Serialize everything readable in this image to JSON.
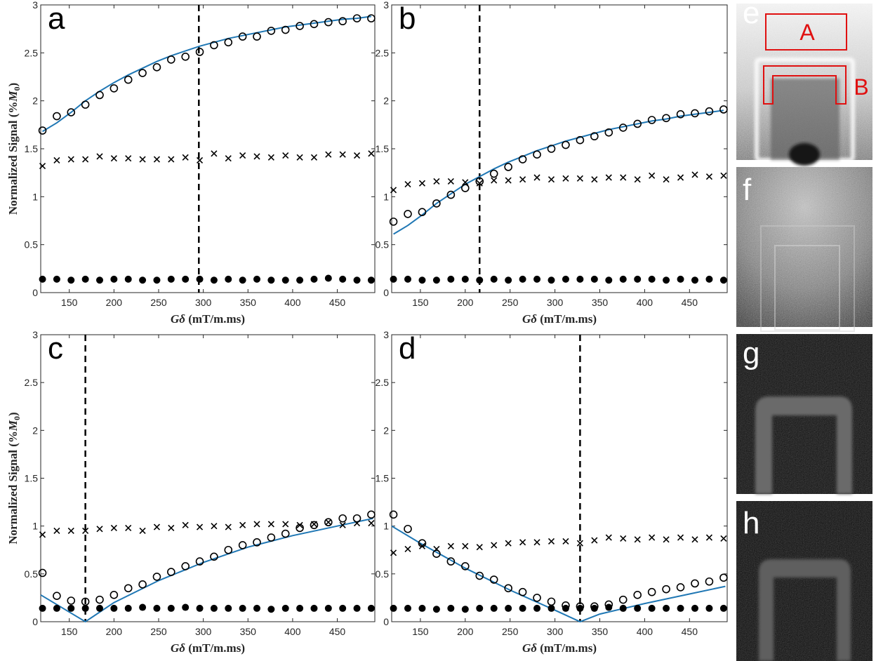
{
  "colors": {
    "model": "#1f77b4",
    "roi": "#e01010",
    "marker": "#000000",
    "axis": "#262626"
  },
  "chart_data": [
    {
      "panel": "a",
      "type": "scatter",
      "xlabel_math": "Gδ",
      "xlabel_unit": "(mT/m.ms)",
      "ylabel_text": "Normalized Signal (%",
      "ylabel_sym": "M",
      "ylabel_sub": "0",
      "ylabel_close": ")",
      "xlim": [
        118,
        492
      ],
      "ylim": [
        0,
        3
      ],
      "xticks": [
        150,
        200,
        250,
        300,
        350,
        400,
        450
      ],
      "yticks": [
        0,
        0.5,
        1,
        1.5,
        2,
        2.5,
        3
      ],
      "vline": 295,
      "x": [
        120,
        136,
        152,
        168,
        184,
        200,
        216,
        232,
        248,
        264,
        280,
        296,
        312,
        328,
        344,
        360,
        376,
        392,
        408,
        424,
        440,
        456,
        472,
        488
      ],
      "series": [
        {
          "marker": "open-circle",
          "values": [
            1.69,
            1.84,
            1.88,
            1.96,
            2.06,
            2.13,
            2.22,
            2.29,
            2.35,
            2.43,
            2.46,
            2.51,
            2.58,
            2.61,
            2.67,
            2.67,
            2.73,
            2.74,
            2.78,
            2.8,
            2.82,
            2.83,
            2.86,
            2.86
          ]
        },
        {
          "marker": "cross",
          "values": [
            1.32,
            1.38,
            1.39,
            1.39,
            1.42,
            1.4,
            1.4,
            1.39,
            1.39,
            1.39,
            1.41,
            1.38,
            1.45,
            1.4,
            1.43,
            1.42,
            1.41,
            1.43,
            1.41,
            1.41,
            1.44,
            1.44,
            1.43,
            1.45
          ]
        },
        {
          "marker": "filled-circle",
          "values": [
            0.14,
            0.14,
            0.13,
            0.14,
            0.13,
            0.14,
            0.14,
            0.13,
            0.13,
            0.14,
            0.14,
            0.14,
            0.13,
            0.14,
            0.13,
            0.14,
            0.13,
            0.13,
            0.13,
            0.14,
            0.15,
            0.14,
            0.13,
            0.13
          ]
        },
        {
          "marker": "line",
          "values": [
            1.68,
            1.77,
            1.88,
            2.0,
            2.1,
            2.19,
            2.27,
            2.34,
            2.41,
            2.47,
            2.52,
            2.57,
            2.61,
            2.65,
            2.68,
            2.71,
            2.74,
            2.77,
            2.79,
            2.81,
            2.83,
            2.85,
            2.86,
            2.88
          ]
        }
      ]
    },
    {
      "panel": "b",
      "type": "scatter",
      "xlabel_math": "Gδ",
      "xlabel_unit": "(mT/m.ms)",
      "xlim": [
        118,
        492
      ],
      "ylim": [
        0,
        3
      ],
      "xticks": [
        150,
        200,
        250,
        300,
        350,
        400,
        450
      ],
      "yticks": [
        0,
        0.5,
        1,
        1.5,
        2,
        2.5,
        3
      ],
      "vline": 216,
      "x": [
        120,
        136,
        152,
        168,
        184,
        200,
        216,
        232,
        248,
        264,
        280,
        296,
        312,
        328,
        344,
        360,
        376,
        392,
        408,
        424,
        440,
        456,
        472,
        488
      ],
      "series": [
        {
          "marker": "open-circle",
          "values": [
            0.74,
            0.82,
            0.84,
            0.93,
            1.02,
            1.09,
            1.16,
            1.24,
            1.31,
            1.39,
            1.44,
            1.5,
            1.54,
            1.59,
            1.63,
            1.67,
            1.72,
            1.76,
            1.8,
            1.82,
            1.86,
            1.87,
            1.89,
            1.91
          ]
        },
        {
          "marker": "cross",
          "values": [
            1.07,
            1.13,
            1.14,
            1.16,
            1.16,
            1.15,
            1.14,
            1.17,
            1.17,
            1.18,
            1.2,
            1.18,
            1.19,
            1.19,
            1.18,
            1.2,
            1.2,
            1.18,
            1.22,
            1.18,
            1.2,
            1.23,
            1.21,
            1.22
          ]
        },
        {
          "marker": "filled-circle",
          "values": [
            0.14,
            0.14,
            0.13,
            0.13,
            0.14,
            0.14,
            0.13,
            0.14,
            0.13,
            0.14,
            0.14,
            0.13,
            0.14,
            0.14,
            0.14,
            0.13,
            0.14,
            0.14,
            0.14,
            0.13,
            0.14,
            0.13,
            0.14,
            0.13
          ]
        },
        {
          "marker": "line",
          "values": [
            0.61,
            0.7,
            0.81,
            0.93,
            1.03,
            1.13,
            1.21,
            1.29,
            1.36,
            1.42,
            1.48,
            1.53,
            1.58,
            1.62,
            1.66,
            1.7,
            1.73,
            1.76,
            1.79,
            1.81,
            1.84,
            1.86,
            1.88,
            1.9
          ]
        }
      ]
    },
    {
      "panel": "c",
      "type": "scatter",
      "xlabel_math": "Gδ",
      "xlabel_unit": "(mT/m.ms)",
      "ylabel_text": "Normalized Signal (%",
      "ylabel_sym": "M",
      "ylabel_sub": "0",
      "ylabel_close": ")",
      "xlim": [
        118,
        492
      ],
      "ylim": [
        0,
        3
      ],
      "xticks": [
        150,
        200,
        250,
        300,
        350,
        400,
        450
      ],
      "yticks": [
        0,
        0.5,
        1,
        1.5,
        2,
        2.5,
        3
      ],
      "vline": 168,
      "x": [
        120,
        136,
        152,
        168,
        184,
        200,
        216,
        232,
        248,
        264,
        280,
        296,
        312,
        328,
        344,
        360,
        376,
        392,
        408,
        424,
        440,
        456,
        472,
        488
      ],
      "series": [
        {
          "marker": "open-circle",
          "values": [
            0.51,
            0.27,
            0.22,
            0.21,
            0.23,
            0.28,
            0.35,
            0.39,
            0.47,
            0.52,
            0.58,
            0.63,
            0.68,
            0.75,
            0.8,
            0.83,
            0.88,
            0.92,
            0.98,
            1.01,
            1.04,
            1.08,
            1.08,
            1.12
          ]
        },
        {
          "marker": "cross",
          "values": [
            0.91,
            0.95,
            0.95,
            0.95,
            0.97,
            0.98,
            0.98,
            0.95,
            0.99,
            0.98,
            1.01,
            0.99,
            1.0,
            0.99,
            1.01,
            1.02,
            1.02,
            1.02,
            1.01,
            1.02,
            1.04,
            1.01,
            1.03,
            1.03
          ]
        },
        {
          "marker": "filled-circle",
          "values": [
            0.14,
            0.14,
            0.14,
            0.14,
            0.14,
            0.14,
            0.14,
            0.15,
            0.14,
            0.14,
            0.15,
            0.14,
            0.14,
            0.14,
            0.14,
            0.14,
            0.13,
            0.14,
            0.14,
            0.14,
            0.14,
            0.14,
            0.14,
            0.14
          ]
        },
        {
          "marker": "line",
          "x": [
            118,
            168,
            200,
            250,
            300,
            350,
            400,
            450,
            490
          ],
          "values": [
            0.28,
            0.0,
            0.2,
            0.43,
            0.62,
            0.78,
            0.9,
            1.0,
            1.08
          ]
        }
      ]
    },
    {
      "panel": "d",
      "type": "scatter",
      "xlabel_math": "Gδ",
      "xlabel_unit": "(mT/m.ms)",
      "xlim": [
        118,
        492
      ],
      "ylim": [
        0,
        3
      ],
      "xticks": [
        150,
        200,
        250,
        300,
        350,
        400,
        450
      ],
      "yticks": [
        0,
        0.5,
        1,
        1.5,
        2,
        2.5,
        3
      ],
      "vline": 328,
      "x": [
        120,
        136,
        152,
        168,
        184,
        200,
        216,
        232,
        248,
        264,
        280,
        296,
        312,
        328,
        344,
        360,
        376,
        392,
        408,
        424,
        440,
        456,
        472,
        488
      ],
      "series": [
        {
          "marker": "open-circle",
          "values": [
            1.12,
            0.97,
            0.82,
            0.71,
            0.63,
            0.58,
            0.48,
            0.44,
            0.35,
            0.31,
            0.25,
            0.21,
            0.17,
            0.16,
            0.16,
            0.18,
            0.23,
            0.28,
            0.31,
            0.34,
            0.36,
            0.4,
            0.42,
            0.46
          ]
        },
        {
          "marker": "cross",
          "values": [
            0.72,
            0.76,
            0.79,
            0.76,
            0.79,
            0.79,
            0.78,
            0.8,
            0.82,
            0.83,
            0.83,
            0.84,
            0.84,
            0.82,
            0.85,
            0.88,
            0.87,
            0.86,
            0.88,
            0.86,
            0.88,
            0.86,
            0.88,
            0.87
          ]
        },
        {
          "marker": "filled-circle",
          "values": [
            0.14,
            0.14,
            0.14,
            0.13,
            0.14,
            0.13,
            0.14,
            0.14,
            0.14,
            0.14,
            0.14,
            0.14,
            0.14,
            0.14,
            0.14,
            0.15,
            0.14,
            0.14,
            0.14,
            0.14,
            0.14,
            0.14,
            0.14,
            0.14
          ]
        },
        {
          "marker": "line",
          "x": [
            118,
            150,
            200,
            250,
            300,
            328,
            350,
            400,
            450,
            490
          ],
          "values": [
            1.0,
            0.82,
            0.56,
            0.33,
            0.12,
            0.0,
            0.08,
            0.19,
            0.29,
            0.37
          ]
        }
      ]
    }
  ],
  "images": [
    {
      "panel": "e",
      "style": "bright",
      "roi": [
        {
          "label": "A"
        },
        {
          "label": "B"
        }
      ]
    },
    {
      "panel": "f",
      "style": "grey"
    },
    {
      "panel": "g",
      "style": "dark"
    },
    {
      "panel": "h",
      "style": "dark"
    }
  ]
}
